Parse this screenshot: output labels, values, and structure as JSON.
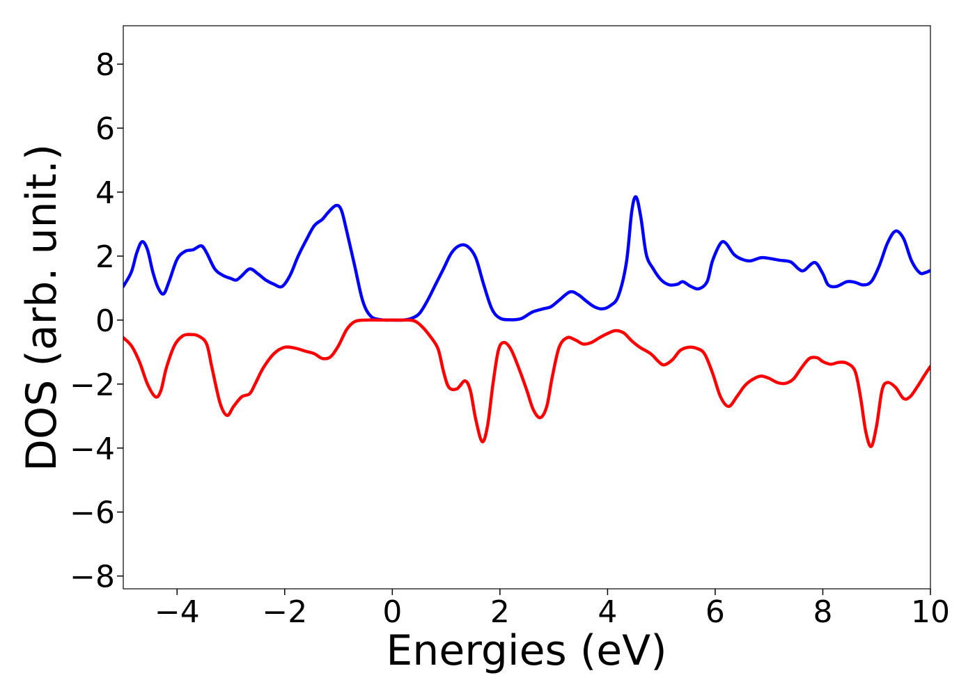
{
  "chart_data": {
    "type": "line",
    "title": "",
    "xlabel": "Energies (eV)",
    "ylabel": "DOS (arb. unit.)",
    "xlim": [
      -5,
      10
    ],
    "ylim": [
      -8.4,
      9.2
    ],
    "xticks": [
      -4,
      -2,
      0,
      2,
      4,
      6,
      8,
      10
    ],
    "yticks": [
      -8,
      -6,
      -4,
      -2,
      0,
      2,
      4,
      6,
      8
    ],
    "xtick_labels": [
      "−4",
      "−2",
      "0",
      "2",
      "4",
      "6",
      "8",
      "10"
    ],
    "ytick_labels": [
      "−8",
      "−6",
      "−4",
      "−2",
      "0",
      "2",
      "4",
      "6",
      "8"
    ],
    "grid": false,
    "legend": "none",
    "series": [
      {
        "color": "#0000ff",
        "points": [
          [
            -5.0,
            1.05
          ],
          [
            -4.85,
            1.5
          ],
          [
            -4.75,
            2.1
          ],
          [
            -4.65,
            2.45
          ],
          [
            -4.55,
            2.2
          ],
          [
            -4.45,
            1.5
          ],
          [
            -4.35,
            1.0
          ],
          [
            -4.25,
            0.82
          ],
          [
            -4.15,
            1.2
          ],
          [
            -4.0,
            1.9
          ],
          [
            -3.85,
            2.15
          ],
          [
            -3.7,
            2.2
          ],
          [
            -3.55,
            2.32
          ],
          [
            -3.45,
            2.1
          ],
          [
            -3.3,
            1.6
          ],
          [
            -3.15,
            1.4
          ],
          [
            -3.0,
            1.3
          ],
          [
            -2.9,
            1.25
          ],
          [
            -2.8,
            1.38
          ],
          [
            -2.65,
            1.6
          ],
          [
            -2.5,
            1.45
          ],
          [
            -2.35,
            1.25
          ],
          [
            -2.2,
            1.12
          ],
          [
            -2.05,
            1.05
          ],
          [
            -1.9,
            1.4
          ],
          [
            -1.75,
            2.0
          ],
          [
            -1.6,
            2.5
          ],
          [
            -1.45,
            2.95
          ],
          [
            -1.3,
            3.15
          ],
          [
            -1.2,
            3.35
          ],
          [
            -1.05,
            3.58
          ],
          [
            -0.95,
            3.45
          ],
          [
            -0.85,
            2.8
          ],
          [
            -0.7,
            1.7
          ],
          [
            -0.55,
            0.6
          ],
          [
            -0.4,
            0.12
          ],
          [
            -0.2,
            0.01
          ],
          [
            0.0,
            0.0
          ],
          [
            0.2,
            0.0
          ],
          [
            0.35,
            0.05
          ],
          [
            0.5,
            0.2
          ],
          [
            0.65,
            0.6
          ],
          [
            0.8,
            1.1
          ],
          [
            0.95,
            1.6
          ],
          [
            1.1,
            2.1
          ],
          [
            1.25,
            2.33
          ],
          [
            1.4,
            2.3
          ],
          [
            1.55,
            1.95
          ],
          [
            1.7,
            1.1
          ],
          [
            1.85,
            0.35
          ],
          [
            2.0,
            0.06
          ],
          [
            2.2,
            0.01
          ],
          [
            2.4,
            0.05
          ],
          [
            2.6,
            0.25
          ],
          [
            2.8,
            0.35
          ],
          [
            2.95,
            0.42
          ],
          [
            3.1,
            0.62
          ],
          [
            3.3,
            0.88
          ],
          [
            3.45,
            0.8
          ],
          [
            3.6,
            0.6
          ],
          [
            3.75,
            0.42
          ],
          [
            3.9,
            0.35
          ],
          [
            4.05,
            0.45
          ],
          [
            4.2,
            0.75
          ],
          [
            4.35,
            1.8
          ],
          [
            4.45,
            3.4
          ],
          [
            4.53,
            3.85
          ],
          [
            4.62,
            3.2
          ],
          [
            4.72,
            2.05
          ],
          [
            4.85,
            1.6
          ],
          [
            5.0,
            1.25
          ],
          [
            5.15,
            1.1
          ],
          [
            5.3,
            1.12
          ],
          [
            5.4,
            1.2
          ],
          [
            5.55,
            1.05
          ],
          [
            5.7,
            0.98
          ],
          [
            5.85,
            1.2
          ],
          [
            5.95,
            1.85
          ],
          [
            6.1,
            2.4
          ],
          [
            6.2,
            2.4
          ],
          [
            6.35,
            2.05
          ],
          [
            6.5,
            1.9
          ],
          [
            6.65,
            1.85
          ],
          [
            6.85,
            1.95
          ],
          [
            7.0,
            1.93
          ],
          [
            7.2,
            1.87
          ],
          [
            7.4,
            1.82
          ],
          [
            7.55,
            1.6
          ],
          [
            7.65,
            1.55
          ],
          [
            7.85,
            1.8
          ],
          [
            8.0,
            1.45
          ],
          [
            8.1,
            1.1
          ],
          [
            8.25,
            1.05
          ],
          [
            8.45,
            1.2
          ],
          [
            8.6,
            1.18
          ],
          [
            8.75,
            1.1
          ],
          [
            8.9,
            1.2
          ],
          [
            9.05,
            1.7
          ],
          [
            9.2,
            2.4
          ],
          [
            9.35,
            2.78
          ],
          [
            9.5,
            2.55
          ],
          [
            9.65,
            1.85
          ],
          [
            9.8,
            1.48
          ],
          [
            9.9,
            1.48
          ],
          [
            10.0,
            1.55
          ]
        ]
      },
      {
        "color": "#ff0000",
        "points": [
          [
            -5.0,
            -0.55
          ],
          [
            -4.85,
            -0.8
          ],
          [
            -4.7,
            -1.3
          ],
          [
            -4.55,
            -2.0
          ],
          [
            -4.4,
            -2.4
          ],
          [
            -4.3,
            -2.2
          ],
          [
            -4.2,
            -1.5
          ],
          [
            -4.05,
            -0.8
          ],
          [
            -3.9,
            -0.5
          ],
          [
            -3.75,
            -0.45
          ],
          [
            -3.6,
            -0.5
          ],
          [
            -3.45,
            -0.75
          ],
          [
            -3.35,
            -1.5
          ],
          [
            -3.2,
            -2.6
          ],
          [
            -3.07,
            -2.98
          ],
          [
            -2.95,
            -2.7
          ],
          [
            -2.8,
            -2.4
          ],
          [
            -2.65,
            -2.3
          ],
          [
            -2.55,
            -2.0
          ],
          [
            -2.4,
            -1.5
          ],
          [
            -2.2,
            -1.05
          ],
          [
            -2.0,
            -0.85
          ],
          [
            -1.8,
            -0.88
          ],
          [
            -1.6,
            -0.98
          ],
          [
            -1.45,
            -1.05
          ],
          [
            -1.3,
            -1.2
          ],
          [
            -1.15,
            -1.15
          ],
          [
            -1.0,
            -0.8
          ],
          [
            -0.85,
            -0.3
          ],
          [
            -0.7,
            -0.05
          ],
          [
            -0.5,
            0.0
          ],
          [
            -0.2,
            0.0
          ],
          [
            0.2,
            0.0
          ],
          [
            0.4,
            -0.02
          ],
          [
            0.55,
            -0.2
          ],
          [
            0.7,
            -0.5
          ],
          [
            0.85,
            -0.9
          ],
          [
            0.95,
            -1.6
          ],
          [
            1.05,
            -2.1
          ],
          [
            1.2,
            -2.15
          ],
          [
            1.35,
            -1.9
          ],
          [
            1.45,
            -2.2
          ],
          [
            1.55,
            -3.1
          ],
          [
            1.67,
            -3.8
          ],
          [
            1.77,
            -3.3
          ],
          [
            1.87,
            -2.0
          ],
          [
            1.97,
            -0.95
          ],
          [
            2.07,
            -0.7
          ],
          [
            2.2,
            -0.9
          ],
          [
            2.35,
            -1.5
          ],
          [
            2.5,
            -2.2
          ],
          [
            2.62,
            -2.8
          ],
          [
            2.75,
            -3.05
          ],
          [
            2.87,
            -2.7
          ],
          [
            2.97,
            -1.8
          ],
          [
            3.1,
            -0.85
          ],
          [
            3.25,
            -0.55
          ],
          [
            3.4,
            -0.62
          ],
          [
            3.55,
            -0.75
          ],
          [
            3.7,
            -0.7
          ],
          [
            3.85,
            -0.55
          ],
          [
            4.0,
            -0.42
          ],
          [
            4.15,
            -0.33
          ],
          [
            4.3,
            -0.4
          ],
          [
            4.45,
            -0.65
          ],
          [
            4.6,
            -0.85
          ],
          [
            4.8,
            -1.05
          ],
          [
            4.95,
            -1.3
          ],
          [
            5.05,
            -1.4
          ],
          [
            5.2,
            -1.25
          ],
          [
            5.35,
            -0.95
          ],
          [
            5.5,
            -0.85
          ],
          [
            5.65,
            -0.88
          ],
          [
            5.8,
            -1.05
          ],
          [
            5.95,
            -1.65
          ],
          [
            6.1,
            -2.4
          ],
          [
            6.25,
            -2.7
          ],
          [
            6.4,
            -2.4
          ],
          [
            6.55,
            -2.05
          ],
          [
            6.7,
            -1.85
          ],
          [
            6.85,
            -1.75
          ],
          [
            7.0,
            -1.82
          ],
          [
            7.15,
            -1.95
          ],
          [
            7.3,
            -1.98
          ],
          [
            7.45,
            -1.85
          ],
          [
            7.6,
            -1.5
          ],
          [
            7.75,
            -1.2
          ],
          [
            7.9,
            -1.18
          ],
          [
            8.0,
            -1.3
          ],
          [
            8.15,
            -1.38
          ],
          [
            8.3,
            -1.32
          ],
          [
            8.45,
            -1.35
          ],
          [
            8.6,
            -1.6
          ],
          [
            8.7,
            -2.4
          ],
          [
            8.8,
            -3.5
          ],
          [
            8.9,
            -3.95
          ],
          [
            9.0,
            -3.3
          ],
          [
            9.1,
            -2.2
          ],
          [
            9.2,
            -1.95
          ],
          [
            9.35,
            -2.1
          ],
          [
            9.5,
            -2.45
          ],
          [
            9.62,
            -2.4
          ],
          [
            9.75,
            -2.1
          ],
          [
            9.9,
            -1.7
          ],
          [
            10.0,
            -1.45
          ]
        ]
      }
    ]
  }
}
